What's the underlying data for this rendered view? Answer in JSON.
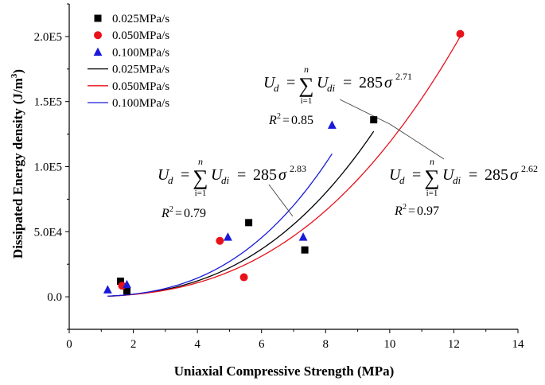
{
  "chart_data": {
    "type": "scatter",
    "title": "",
    "xlabel": "Uniaxial Compressive Strength (MPa)",
    "ylabel": "Dissipated Energy density",
    "ylabel_unit": "(J/m",
    "ylabel_unit_exp": "3",
    "ylabel_unit_close": ")",
    "xlim": [
      0,
      14
    ],
    "ylim": [
      -25000,
      225000
    ],
    "xticks": [
      0,
      2,
      4,
      6,
      8,
      10,
      12,
      14
    ],
    "xtick_labels": [
      "0",
      "2",
      "4",
      "6",
      "8",
      "10",
      "12",
      "14"
    ],
    "yticks": [
      0,
      50000,
      100000,
      150000,
      200000
    ],
    "ytick_labels": [
      "0.0",
      "5.0E4",
      "1.0E5",
      "1.5E5",
      "2.0E5"
    ],
    "grid": false,
    "legend": {
      "placement": "top-left",
      "entries": [
        {
          "label": "0.025MPa/s",
          "kind": "marker",
          "marker": "square",
          "color": "#000000"
        },
        {
          "label": "0.050MPa/s",
          "kind": "marker",
          "marker": "circle",
          "color": "#e8121b"
        },
        {
          "label": "0.100MPa/s",
          "kind": "marker",
          "marker": "triangle",
          "color": "#1a1adb"
        },
        {
          "label": "0.025MPa/s",
          "kind": "line",
          "color": "#000000"
        },
        {
          "label": "0.050MPa/s",
          "kind": "line",
          "color": "#e8121b"
        },
        {
          "label": "0.100MPa/s",
          "kind": "line",
          "color": "#1a1adb"
        }
      ]
    },
    "series": [
      {
        "name": "0.025MPa/s",
        "marker": "square",
        "color": "#000000",
        "points": [
          [
            1.6,
            12000
          ],
          [
            1.8,
            4500
          ],
          [
            5.6,
            57000
          ],
          [
            7.35,
            36000
          ],
          [
            9.5,
            136000
          ]
        ]
      },
      {
        "name": "0.050MPa/s",
        "marker": "circle",
        "color": "#e8121b",
        "points": [
          [
            1.65,
            8500
          ],
          [
            4.7,
            43000
          ],
          [
            5.45,
            15000
          ],
          [
            12.2,
            202000
          ]
        ]
      },
      {
        "name": "0.100MPa/s",
        "marker": "triangle",
        "color": "#1a1adb",
        "points": [
          [
            1.2,
            5500
          ],
          [
            1.8,
            9500
          ],
          [
            4.95,
            46000
          ],
          [
            7.3,
            46000
          ],
          [
            8.2,
            132000
          ]
        ]
      }
    ],
    "fits": [
      {
        "name": "0.025MPa/s",
        "color": "#000000",
        "coef": 285,
        "exponent": 2.71,
        "x_range": [
          1.2,
          9.5
        ],
        "equation_exponent": "2.71",
        "r2": "0.85"
      },
      {
        "name": "0.050MPa/s",
        "color": "#e8121b",
        "coef": 285,
        "exponent": 2.62,
        "x_range": [
          1.2,
          12.2
        ],
        "equation_exponent": "2.62",
        "r2": "0.97"
      },
      {
        "name": "0.100MPa/s",
        "color": "#1a1adb",
        "coef": 285,
        "exponent": 2.83,
        "x_range": [
          1.2,
          8.2
        ],
        "equation_exponent": "2.83",
        "r2": "0.79"
      }
    ],
    "equation": {
      "lhs_var": "U",
      "lhs_sub": "d",
      "equals": "=",
      "sum_symbol": "∑",
      "sum_top": "n",
      "sum_bottom": "i=1",
      "term_var": "U",
      "term_sub": "di",
      "rhs_coef": "285",
      "rhs_var": "σ",
      "r2_label": "R",
      "r2_exp": "2",
      "r2_eq": "="
    }
  }
}
